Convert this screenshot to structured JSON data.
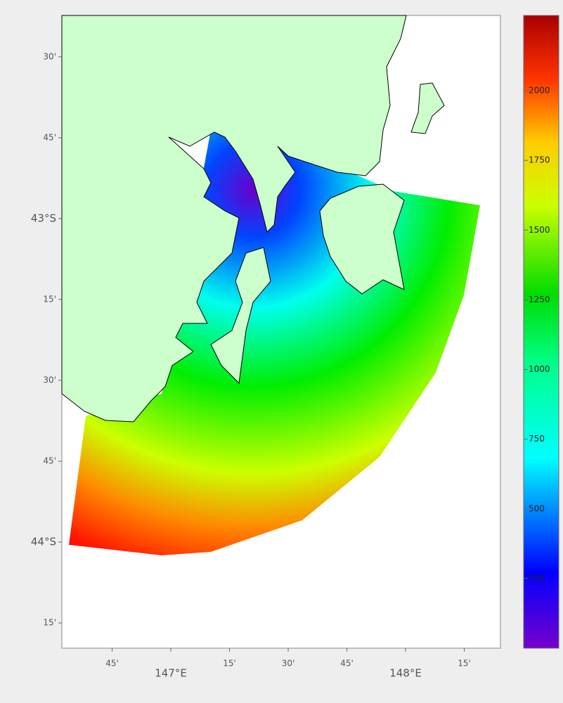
{
  "map": {
    "lonlim": [
      146.536,
      148.404
    ],
    "latlim": [
      -44.328,
      -42.372
    ],
    "lon_ticks": [
      {
        "value": 146.75,
        "label": "45'"
      },
      {
        "value": 147,
        "label": "147°E"
      },
      {
        "value": 147.25,
        "label": "15'"
      },
      {
        "value": 147.5,
        "label": "30'"
      },
      {
        "value": 147.75,
        "label": "45'"
      },
      {
        "value": 148,
        "label": "148°E"
      },
      {
        "value": 148.25,
        "label": "15'"
      }
    ],
    "lat_ticks": [
      {
        "value": -42.5,
        "label": "30'"
      },
      {
        "value": -42.75,
        "label": "45'"
      },
      {
        "value": -43,
        "label": "43°S"
      },
      {
        "value": -43.25,
        "label": "15'"
      },
      {
        "value": -43.5,
        "label": "30'"
      },
      {
        "value": -43.75,
        "label": "45'"
      },
      {
        "value": -44,
        "label": "44°S"
      },
      {
        "value": -44.25,
        "label": "15'"
      }
    ],
    "colorbar": {
      "lim": [
        0,
        2270
      ],
      "ticks": [
        250,
        500,
        750,
        1000,
        1250,
        1500,
        1750,
        2000
      ]
    }
  }
}
